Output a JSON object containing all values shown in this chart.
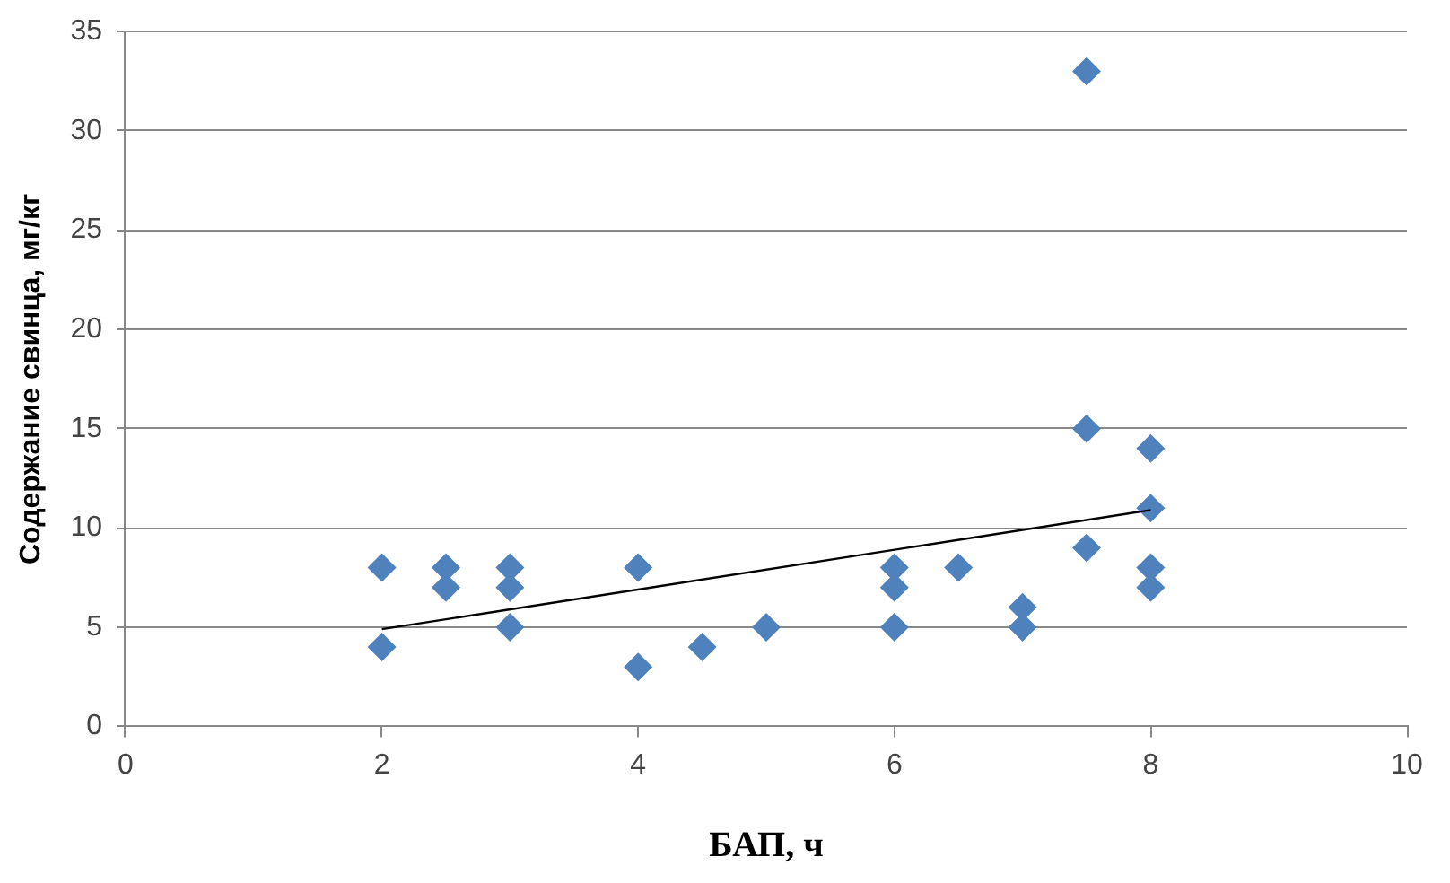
{
  "chart_data": {
    "type": "scatter",
    "xlabel": "БАП, ч",
    "ylabel": "Содержание свинца, мг/кг",
    "xlim": [
      0,
      10
    ],
    "xticks": [
      0,
      2,
      4,
      6,
      8,
      10
    ],
    "ylim": [
      0,
      35
    ],
    "yticks": [
      0,
      5,
      10,
      15,
      20,
      25,
      30,
      35
    ],
    "grid": "y",
    "legend": false,
    "marker": "diamond",
    "series": [
      {
        "type": "scatter",
        "color": "#4f81bd",
        "x": [
          2,
          2,
          2.5,
          2.5,
          3,
          3,
          3,
          4,
          4,
          4.5,
          5,
          6,
          6,
          6,
          6.5,
          7,
          7,
          7.5,
          7.5,
          7.5,
          8,
          8,
          8,
          8
        ],
        "values": [
          8,
          4,
          8,
          7,
          8,
          7,
          5,
          8,
          3,
          4,
          5,
          8,
          7,
          5,
          8,
          6,
          5,
          33,
          15,
          9,
          14,
          11,
          8,
          7
        ]
      },
      {
        "type": "line",
        "color": "#000000",
        "x": [
          2,
          8
        ],
        "values": [
          4.9,
          10.9
        ],
        "marker": "none",
        "line_style": "solid"
      }
    ]
  }
}
